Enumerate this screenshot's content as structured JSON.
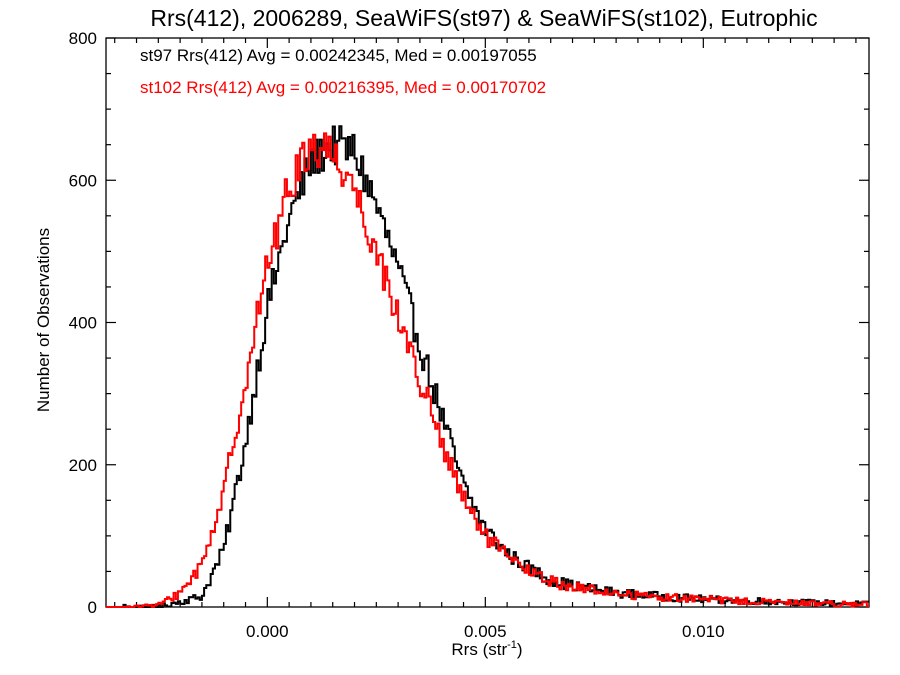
{
  "chart_data": {
    "type": "histogram",
    "title": "Rrs(412), 2006289, SeaWiFS(st97) & SeaWiFS(st102), Eutrophic",
    "xlabel_base": "Rrs (str",
    "xlabel_sup": "-1",
    "xlabel_close": ")",
    "ylabel": "Number of Observations",
    "xlim": [
      -0.0037,
      0.0138
    ],
    "ylim": [
      0,
      800
    ],
    "x_ticks": [
      0.0,
      0.005,
      0.01
    ],
    "x_tick_labels": [
      "0.000",
      "0.005",
      "0.010"
    ],
    "y_ticks": [
      0,
      200,
      400,
      600,
      800
    ],
    "y_tick_labels": [
      "0",
      "200",
      "400",
      "600",
      "800"
    ],
    "legend_position": "top-left",
    "series": [
      {
        "name": "st97",
        "color": "#000000",
        "legend_text": "st97 Rrs(412) Avg = 0.00242345, Med = 0.00197055",
        "mean": 0.00242345,
        "median": 0.00197055,
        "peak_x": 0.0018,
        "peak_y": 655,
        "profile": [
          [
            -0.0037,
            0
          ],
          [
            -0.0025,
            0
          ],
          [
            -0.0015,
            15
          ],
          [
            -0.001,
            80
          ],
          [
            -0.0005,
            230
          ],
          [
            0.0,
            420
          ],
          [
            0.0005,
            545
          ],
          [
            0.001,
            625
          ],
          [
            0.0015,
            650
          ],
          [
            0.002,
            640
          ],
          [
            0.0025,
            565
          ],
          [
            0.003,
            475
          ],
          [
            0.0035,
            370
          ],
          [
            0.004,
            270
          ],
          [
            0.0045,
            170
          ],
          [
            0.005,
            110
          ],
          [
            0.0055,
            75
          ],
          [
            0.006,
            55
          ],
          [
            0.0065,
            38
          ],
          [
            0.007,
            30
          ],
          [
            0.008,
            20
          ],
          [
            0.009,
            15
          ],
          [
            0.01,
            11
          ],
          [
            0.011,
            9
          ],
          [
            0.012,
            7
          ],
          [
            0.0138,
            4
          ]
        ]
      },
      {
        "name": "st102",
        "color": "#ff0000",
        "legend_text": "st102 Rrs(412) Avg = 0.00216395, Med = 0.00170702",
        "mean": 0.00216395,
        "median": 0.00170702,
        "peak_x": 0.0012,
        "peak_y": 660,
        "profile": [
          [
            -0.0037,
            0
          ],
          [
            -0.0025,
            2
          ],
          [
            -0.002,
            20
          ],
          [
            -0.0015,
            60
          ],
          [
            -0.001,
            160
          ],
          [
            -0.0005,
            320
          ],
          [
            0.0,
            480
          ],
          [
            0.0005,
            590
          ],
          [
            0.001,
            650
          ],
          [
            0.0015,
            640
          ],
          [
            0.002,
            590
          ],
          [
            0.0025,
            500
          ],
          [
            0.003,
            410
          ],
          [
            0.0035,
            320
          ],
          [
            0.004,
            230
          ],
          [
            0.0045,
            150
          ],
          [
            0.005,
            100
          ],
          [
            0.0055,
            70
          ],
          [
            0.006,
            50
          ],
          [
            0.0065,
            36
          ],
          [
            0.007,
            28
          ],
          [
            0.008,
            19
          ],
          [
            0.009,
            14
          ],
          [
            0.01,
            11
          ],
          [
            0.011,
            8
          ],
          [
            0.012,
            6
          ],
          [
            0.0138,
            4
          ]
        ]
      }
    ]
  }
}
